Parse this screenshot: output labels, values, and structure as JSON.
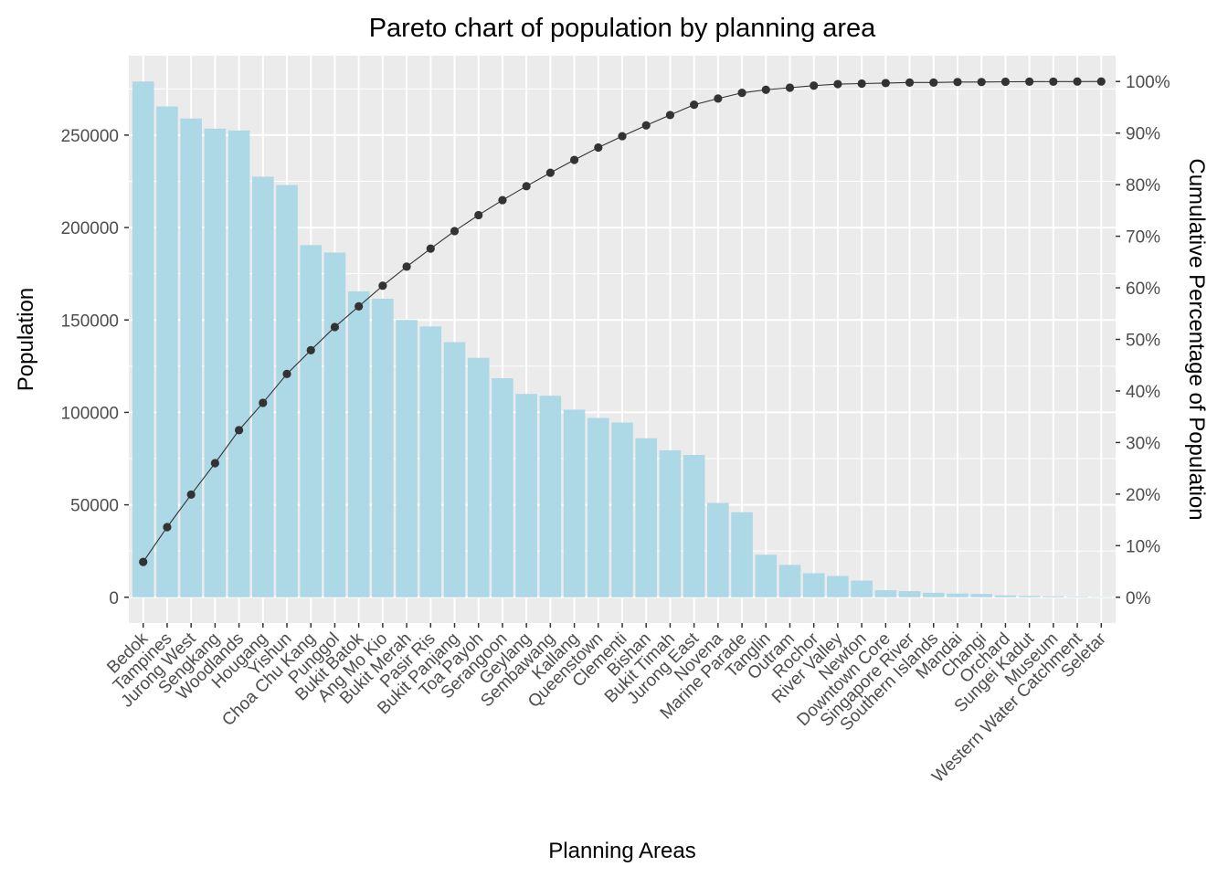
{
  "chart_data": {
    "type": "bar",
    "title": "Pareto chart of population by planning area",
    "xlabel": "Planning Areas",
    "ylabel": "Population",
    "y2label": "Cumulative Percentage of Population",
    "categories": [
      "Bedok",
      "Tampines",
      "Jurong West",
      "Sengkang",
      "Woodlands",
      "Hougang",
      "Yishun",
      "Choa Chu Kang",
      "Punggol",
      "Bukit Batok",
      "Ang Mo Kio",
      "Bukit Merah",
      "Pasir Ris",
      "Bukit Panjang",
      "Toa Payoh",
      "Serangoon",
      "Geylang",
      "Sembawang",
      "Kallang",
      "Queenstown",
      "Clementi",
      "Bishan",
      "Bukit Timah",
      "Jurong East",
      "Novena",
      "Marine Parade",
      "Tanglin",
      "Outram",
      "Rochor",
      "River Valley",
      "Newton",
      "Downtown Core",
      "Singapore River",
      "Southern Islands",
      "Mandai",
      "Changi",
      "Orchard",
      "Sungei Kadut",
      "Museum",
      "Western Water Catchment",
      "Seletar"
    ],
    "series": [
      {
        "type": "bar",
        "color": "#add8e6",
        "values": [
          279000,
          265500,
          259000,
          253500,
          252500,
          227500,
          223000,
          190500,
          186500,
          165500,
          161500,
          150000,
          146500,
          138000,
          129500,
          118500,
          110000,
          109000,
          101500,
          97000,
          94500,
          86000,
          79500,
          77000,
          51000,
          46000,
          23000,
          17500,
          13000,
          11500,
          9000,
          3800,
          3300,
          2400,
          2000,
          1800,
          1000,
          700,
          500,
          300,
          200
        ]
      },
      {
        "type": "line",
        "color": "#333333",
        "values": [
          6.85,
          13.6,
          19.9,
          26.0,
          32.4,
          37.7,
          43.3,
          47.9,
          52.4,
          56.4,
          60.4,
          64.1,
          67.6,
          71.0,
          74.1,
          77.0,
          79.7,
          82.3,
          84.8,
          87.2,
          89.4,
          91.5,
          93.5,
          95.5,
          96.7,
          97.8,
          98.4,
          98.8,
          99.2,
          99.5,
          99.6,
          99.7,
          99.8,
          99.8,
          99.9,
          99.9,
          99.95,
          99.97,
          99.98,
          99.99,
          100
        ]
      }
    ],
    "ylim": [
      -13950,
      292950
    ],
    "yticks": [
      0,
      50000,
      100000,
      150000,
      200000,
      250000
    ],
    "ytick_labels": [
      "0",
      "50000",
      "100000",
      "150000",
      "200000",
      "250000"
    ],
    "y2lim": [
      -5,
      105
    ],
    "y2ticks": [
      0,
      10,
      20,
      30,
      40,
      50,
      60,
      70,
      80,
      90,
      100
    ],
    "y2tick_labels": [
      "0%",
      "10%",
      "20%",
      "30%",
      "40%",
      "50%",
      "60%",
      "70%",
      "80%",
      "90%",
      "100%"
    ],
    "grid": true,
    "colors": {
      "panel": "#ebebeb",
      "grid": "#ffffff",
      "bar": "#add8e6",
      "line": "#333333"
    }
  }
}
